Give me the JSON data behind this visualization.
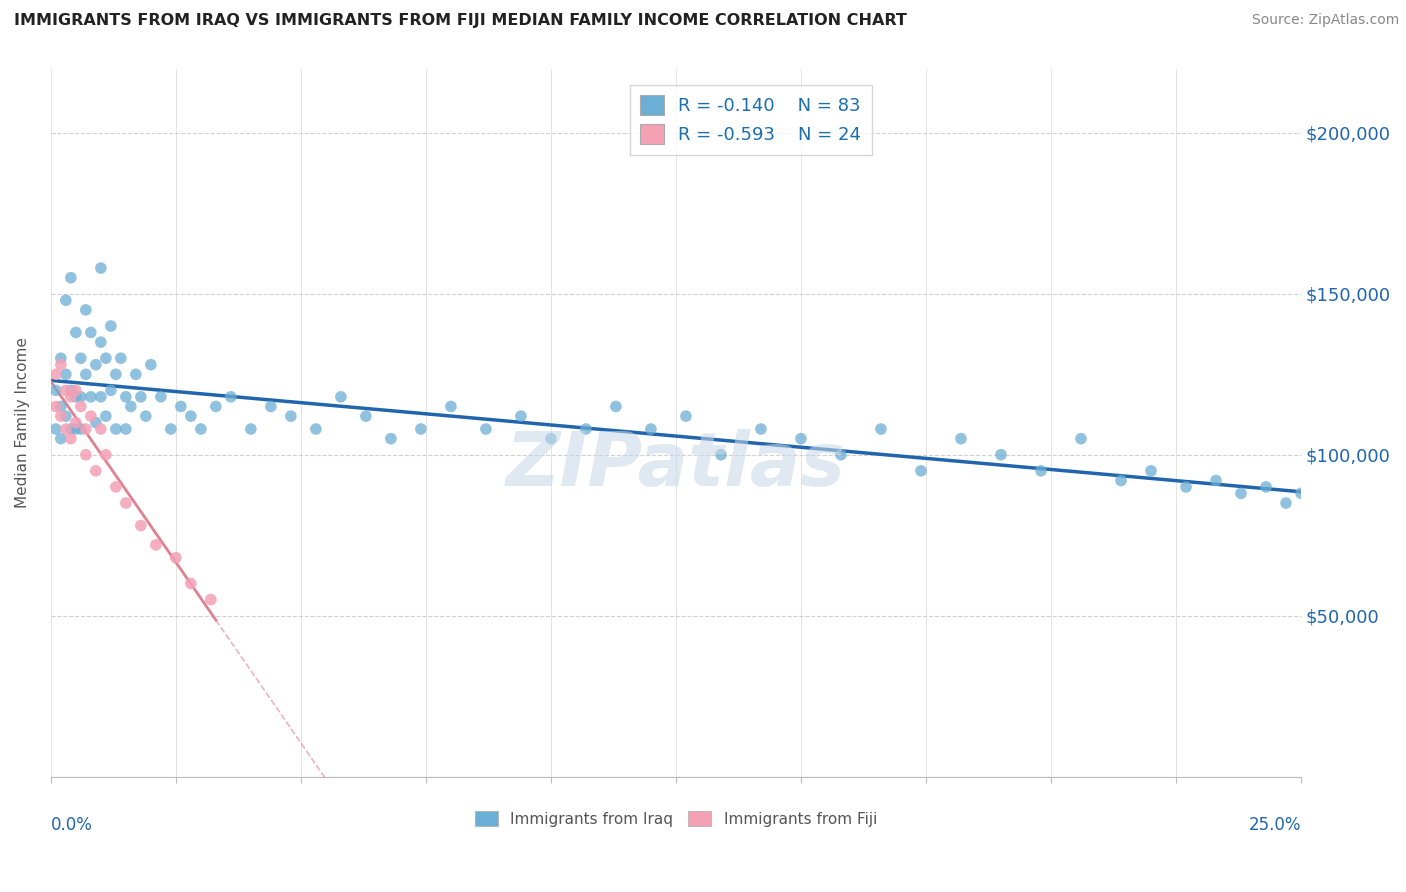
{
  "title": "IMMIGRANTS FROM IRAQ VS IMMIGRANTS FROM FIJI MEDIAN FAMILY INCOME CORRELATION CHART",
  "source": "Source: ZipAtlas.com",
  "ylabel": "Median Family Income",
  "xlim": [
    0.0,
    0.25
  ],
  "ylim": [
    0,
    220000
  ],
  "yticks": [
    0,
    50000,
    100000,
    150000,
    200000
  ],
  "ytick_labels": [
    "",
    "$50,000",
    "$100,000",
    "$150,000",
    "$200,000"
  ],
  "iraq_R": -0.14,
  "iraq_N": 83,
  "fiji_R": -0.593,
  "fiji_N": 24,
  "iraq_color": "#6baed6",
  "fiji_color": "#f4a0b5",
  "iraq_line_color": "#2166ac",
  "fiji_line_color": "#e08090",
  "watermark": "ZIPatlas",
  "iraq_scatter_x": [
    0.001,
    0.001,
    0.002,
    0.002,
    0.002,
    0.003,
    0.003,
    0.003,
    0.004,
    0.004,
    0.004,
    0.005,
    0.005,
    0.005,
    0.006,
    0.006,
    0.006,
    0.007,
    0.007,
    0.008,
    0.008,
    0.009,
    0.009,
    0.01,
    0.01,
    0.01,
    0.011,
    0.011,
    0.012,
    0.012,
    0.013,
    0.013,
    0.014,
    0.015,
    0.015,
    0.016,
    0.017,
    0.018,
    0.019,
    0.02,
    0.022,
    0.024,
    0.026,
    0.028,
    0.03,
    0.033,
    0.036,
    0.04,
    0.044,
    0.048,
    0.053,
    0.058,
    0.063,
    0.068,
    0.074,
    0.08,
    0.087,
    0.094,
    0.1,
    0.107,
    0.113,
    0.12,
    0.127,
    0.134,
    0.142,
    0.15,
    0.158,
    0.166,
    0.174,
    0.182,
    0.19,
    0.198,
    0.206,
    0.214,
    0.22,
    0.227,
    0.233,
    0.238,
    0.243,
    0.247,
    0.25,
    0.252,
    0.254
  ],
  "iraq_scatter_y": [
    120000,
    108000,
    130000,
    115000,
    105000,
    148000,
    125000,
    112000,
    155000,
    120000,
    108000,
    138000,
    118000,
    108000,
    130000,
    118000,
    108000,
    145000,
    125000,
    138000,
    118000,
    128000,
    110000,
    158000,
    135000,
    118000,
    130000,
    112000,
    140000,
    120000,
    125000,
    108000,
    130000,
    118000,
    108000,
    115000,
    125000,
    118000,
    112000,
    128000,
    118000,
    108000,
    115000,
    112000,
    108000,
    115000,
    118000,
    108000,
    115000,
    112000,
    108000,
    118000,
    112000,
    105000,
    108000,
    115000,
    108000,
    112000,
    105000,
    108000,
    115000,
    108000,
    112000,
    100000,
    108000,
    105000,
    100000,
    108000,
    95000,
    105000,
    100000,
    95000,
    105000,
    92000,
    95000,
    90000,
    92000,
    88000,
    90000,
    85000,
    88000,
    85000,
    82000
  ],
  "fiji_scatter_x": [
    0.001,
    0.001,
    0.002,
    0.002,
    0.003,
    0.003,
    0.004,
    0.004,
    0.005,
    0.005,
    0.006,
    0.007,
    0.007,
    0.008,
    0.009,
    0.01,
    0.011,
    0.013,
    0.015,
    0.018,
    0.021,
    0.025,
    0.028,
    0.032
  ],
  "fiji_scatter_y": [
    125000,
    115000,
    128000,
    112000,
    120000,
    108000,
    118000,
    105000,
    120000,
    110000,
    115000,
    108000,
    100000,
    112000,
    95000,
    108000,
    100000,
    90000,
    85000,
    78000,
    72000,
    68000,
    60000,
    55000
  ]
}
